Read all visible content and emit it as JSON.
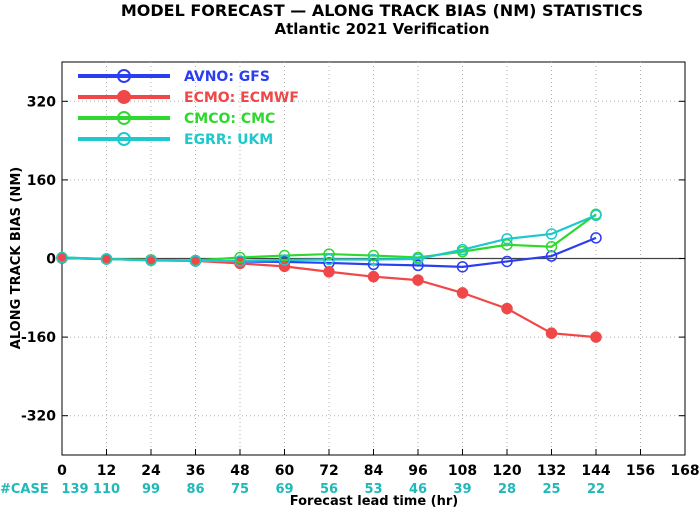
{
  "colors": {
    "AVNO": "#2b3ef0",
    "ECMO": "#f04848",
    "CMCO": "#2fd82f",
    "EGRR": "#1ec8cc",
    "case": "#20b8b8"
  },
  "chart_data": {
    "type": "line",
    "title": "MODEL FORECAST — ALONG TRACK BIAS (NM) STATISTICS",
    "subtitle": "Atlantic 2021 Verification",
    "xlabel": "Forecast lead time (hr)",
    "ylabel": "ALONG TRACK BIAS (NM)",
    "xlim": [
      0,
      168
    ],
    "ylim": [
      -400,
      400
    ],
    "xticks": [
      0,
      12,
      24,
      36,
      48,
      60,
      72,
      84,
      96,
      108,
      120,
      132,
      144,
      156,
      168
    ],
    "yticks": [
      -320,
      -160,
      0,
      160,
      320
    ],
    "ytick_labels": [
      "-320",
      "-160",
      "0",
      "160",
      "320"
    ],
    "grid": true,
    "legend_placement": "top-left",
    "x": [
      0,
      12,
      24,
      36,
      48,
      60,
      72,
      84,
      96,
      108,
      120,
      132,
      144
    ],
    "series": [
      {
        "key": "AVNO",
        "name": "AVNO: GFS",
        "values": [
          1,
          -1,
          -3,
          -5,
          -6,
          -7,
          -9,
          -12,
          -14,
          -17,
          -6,
          5,
          42
        ]
      },
      {
        "key": "ECMO",
        "name": "ECMO: ECMWF",
        "values": [
          1,
          -1,
          -3,
          -5,
          -10,
          -16,
          -27,
          -37,
          -44,
          -70,
          -102,
          -152,
          -160
        ]
      },
      {
        "key": "CMCO",
        "name": "CMCO: CMC",
        "values": [
          2,
          -1,
          -3,
          -4,
          2,
          6,
          9,
          6,
          2,
          14,
          28,
          24,
          90
        ]
      },
      {
        "key": "EGRR",
        "name": "EGRR: UKM",
        "values": [
          2,
          -1,
          -4,
          -5,
          -5,
          -3,
          -2,
          -2,
          -1,
          18,
          40,
          50,
          88
        ]
      }
    ],
    "cases": {
      "label": "#CASE",
      "values": [
        139,
        110,
        99,
        86,
        75,
        69,
        56,
        53,
        46,
        39,
        28,
        25,
        22
      ]
    }
  }
}
